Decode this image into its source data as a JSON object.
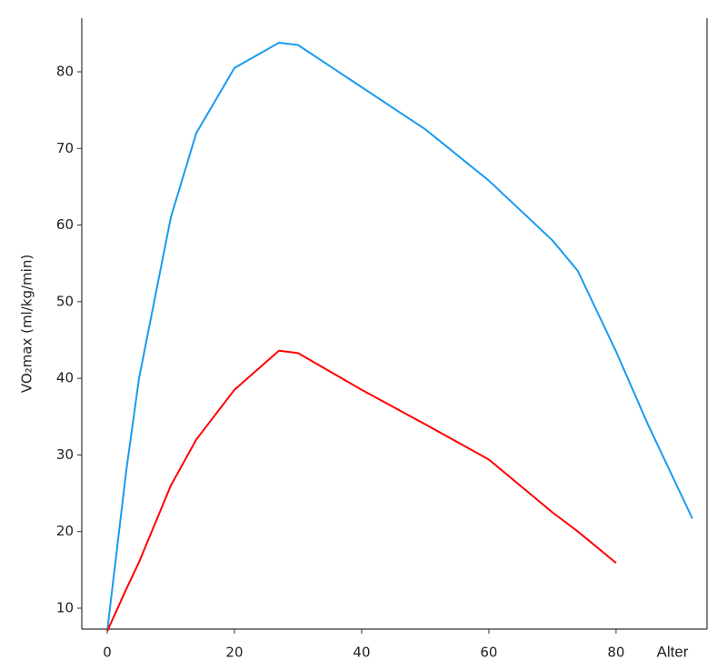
{
  "chart_data": {
    "type": "line",
    "x": [
      0,
      3,
      5,
      10,
      14,
      20,
      27,
      30,
      40,
      50,
      60,
      70,
      74,
      80,
      85,
      92
    ],
    "series": [
      {
        "name": null,
        "color": "#1a9af0",
        "values": [
          7,
          28,
          40,
          61,
          72,
          80.5,
          83.8,
          83.5,
          78,
          72.5,
          65.8,
          58,
          54,
          43.5,
          34,
          21.7
        ]
      },
      {
        "name": null,
        "color": "#ff0000",
        "values": [
          7,
          12.5,
          16,
          26,
          32,
          38.5,
          43.6,
          43.3,
          38.5,
          34,
          29.4,
          22.5,
          20,
          15.9,
          null,
          null
        ]
      }
    ],
    "xlabel": "Alter",
    "ylabel": "VO₂max (ml/kg/min)",
    "xlim": [
      -4,
      94.3
    ],
    "ylim": [
      7.27,
      87
    ],
    "xticks": [
      0,
      20,
      40,
      60,
      80
    ],
    "yticks": [
      10,
      20,
      30,
      40,
      50,
      60,
      70,
      80
    ],
    "grid": false
  }
}
